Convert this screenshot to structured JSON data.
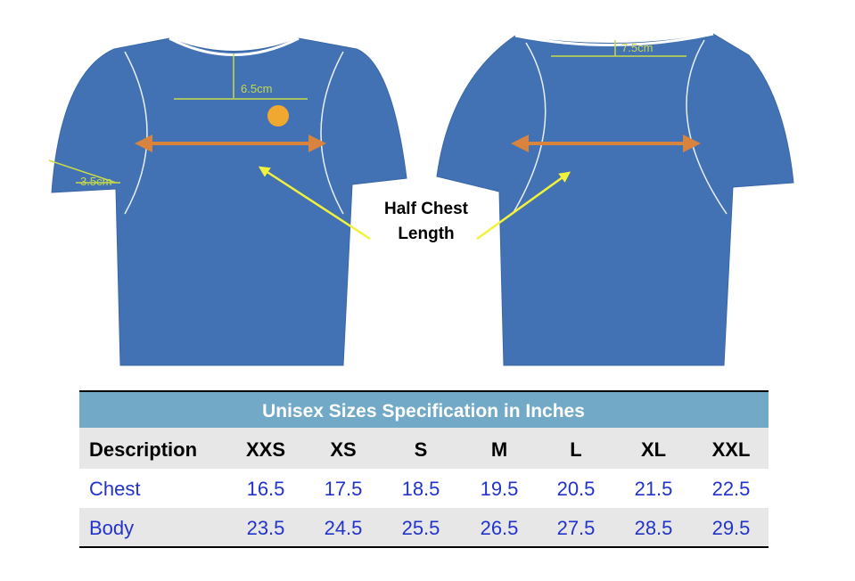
{
  "front_labels": {
    "neck_to_logo": "6.5cm",
    "sleeve": "3.5cm"
  },
  "back_labels": {
    "neck_to_logo": "7.5cm"
  },
  "callout": {
    "lines": [
      "Half Chest",
      "Length"
    ]
  },
  "table": {
    "title": "Unisex Sizes Specification in Inches",
    "header": [
      "Description",
      "XXS",
      "XS",
      "S",
      "M",
      "L",
      "XL",
      "XXL"
    ],
    "rows": [
      [
        "Chest",
        16.5,
        17.5,
        18.5,
        19.5,
        20.5,
        21.5,
        22.5
      ],
      [
        "Body",
        23.5,
        24.5,
        25.5,
        26.5,
        27.5,
        28.5,
        29.5
      ]
    ]
  }
}
